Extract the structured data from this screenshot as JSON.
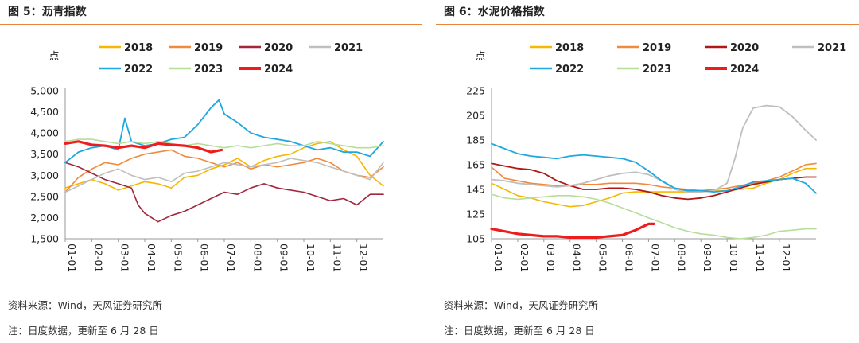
{
  "panels": [
    {
      "title": "图 5：沥青指数",
      "source": "资料来源：Wind，天风证券研究所",
      "note": "注：日度数据，更新至 6 月 28 日"
    },
    {
      "title": "图 6：水泥价格指数",
      "source": "资料来源：Wind，天风证券研究所",
      "note": "注：日度数据，更新至 6 月 28 日"
    }
  ],
  "chart_data": [
    {
      "type": "line",
      "title": "",
      "ylabel": "点",
      "ylim": [
        1500,
        5000
      ],
      "yticks": [
        "1,500",
        "2,000",
        "2,500",
        "3,000",
        "3,500",
        "4,000",
        "4,500",
        "5,000"
      ],
      "ytick_values": [
        1500,
        2000,
        2500,
        3000,
        3500,
        4000,
        4500,
        5000
      ],
      "xticks": [
        "01-01",
        "02-01",
        "03-01",
        "04-01",
        "05-01",
        "06-01",
        "07-01",
        "08-01",
        "09-01",
        "10-01",
        "11-01",
        "12-01"
      ],
      "xlim": [
        0,
        12
      ],
      "legend_position": "top",
      "grid": false,
      "series": [
        {
          "name": "2018",
          "color": "#f5b800",
          "width": 1.6,
          "x": [
            0,
            0.5,
            1,
            1.5,
            2,
            2.5,
            3,
            3.5,
            4,
            4.5,
            5,
            5.5,
            6,
            6.5,
            7,
            7.5,
            8,
            8.5,
            9,
            9.5,
            10,
            10.5,
            11,
            11.5,
            12
          ],
          "values": [
            2700,
            2800,
            2900,
            2800,
            2650,
            2750,
            2850,
            2800,
            2700,
            2950,
            3000,
            3150,
            3250,
            3400,
            3200,
            3350,
            3450,
            3500,
            3650,
            3750,
            3800,
            3600,
            3450,
            3000,
            2750
          ]
        },
        {
          "name": "2019",
          "color": "#f08a3c",
          "width": 1.6,
          "x": [
            0,
            0.5,
            1,
            1.5,
            2,
            2.5,
            3,
            3.5,
            4,
            4.5,
            5,
            5.5,
            6,
            6.5,
            7,
            7.5,
            8,
            8.5,
            9,
            9.5,
            10,
            10.5,
            11,
            11.5,
            12
          ],
          "values": [
            2600,
            2950,
            3150,
            3300,
            3250,
            3400,
            3500,
            3550,
            3600,
            3450,
            3400,
            3300,
            3200,
            3300,
            3150,
            3250,
            3200,
            3250,
            3300,
            3400,
            3300,
            3100,
            3000,
            2950,
            3200
          ]
        },
        {
          "name": "2020",
          "color": "#a3263a",
          "width": 1.6,
          "x": [
            0,
            0.5,
            1,
            1.5,
            2,
            2.5,
            2.75,
            3,
            3.5,
            4,
            4.5,
            5,
            5.5,
            6,
            6.5,
            7,
            7.5,
            8,
            8.5,
            9,
            9.5,
            10,
            10.5,
            11,
            11.5,
            12
          ],
          "values": [
            3300,
            3200,
            3050,
            2900,
            2800,
            2700,
            2300,
            2100,
            1900,
            2050,
            2150,
            2300,
            2450,
            2600,
            2550,
            2700,
            2800,
            2700,
            2650,
            2600,
            2500,
            2400,
            2450,
            2300,
            2550,
            2550
          ]
        },
        {
          "name": "2021",
          "color": "#bfbfbf",
          "width": 1.6,
          "x": [
            0,
            0.5,
            1,
            1.5,
            2,
            2.5,
            3,
            3.5,
            4,
            4.5,
            5,
            5.5,
            6,
            6.5,
            7,
            7.5,
            8,
            8.5,
            9,
            9.5,
            10,
            10.5,
            11,
            11.5,
            12
          ],
          "values": [
            2600,
            2750,
            2900,
            3050,
            3150,
            3000,
            2900,
            2950,
            2850,
            3050,
            3100,
            3200,
            3300,
            3250,
            3200,
            3250,
            3300,
            3400,
            3350,
            3300,
            3200,
            3100,
            3000,
            2900,
            3300
          ]
        },
        {
          "name": "2022",
          "color": "#1fa8e0",
          "width": 1.8,
          "x": [
            0,
            0.5,
            1,
            1.5,
            2,
            2.25,
            2.5,
            3,
            3.5,
            4,
            4.5,
            5,
            5.5,
            5.8,
            6,
            6.5,
            7,
            7.5,
            8,
            8.5,
            9,
            9.5,
            10,
            10.5,
            11,
            11.5,
            12
          ],
          "values": [
            3300,
            3550,
            3650,
            3700,
            3600,
            4350,
            3800,
            3700,
            3750,
            3850,
            3900,
            4200,
            4600,
            4780,
            4450,
            4250,
            4000,
            3900,
            3850,
            3800,
            3700,
            3600,
            3650,
            3550,
            3550,
            3450,
            3800
          ]
        },
        {
          "name": "2023",
          "color": "#b7dd9b",
          "width": 1.6,
          "x": [
            0,
            0.5,
            1,
            1.5,
            2,
            2.5,
            3,
            3.5,
            4,
            4.5,
            5,
            5.5,
            6,
            6.5,
            7,
            7.5,
            8,
            8.5,
            9,
            9.5,
            10,
            10.5,
            11,
            11.5,
            12
          ],
          "values": [
            3800,
            3850,
            3850,
            3800,
            3750,
            3800,
            3750,
            3800,
            3750,
            3700,
            3750,
            3700,
            3650,
            3700,
            3650,
            3700,
            3750,
            3700,
            3700,
            3800,
            3750,
            3700,
            3650,
            3650,
            3700
          ]
        },
        {
          "name": "2024",
          "color": "#ee1c1c",
          "width": 3.2,
          "x": [
            0,
            0.5,
            1,
            1.5,
            2,
            2.5,
            3,
            3.5,
            4,
            4.5,
            5,
            5.5,
            5.9
          ],
          "values": [
            3750,
            3800,
            3720,
            3700,
            3650,
            3700,
            3650,
            3750,
            3720,
            3700,
            3650,
            3550,
            3600
          ]
        }
      ]
    },
    {
      "type": "line",
      "title": "",
      "ylabel": "点",
      "ylim": [
        105,
        225
      ],
      "yticks": [
        "105",
        "125",
        "145",
        "165",
        "185",
        "205",
        "225"
      ],
      "ytick_values": [
        105,
        125,
        145,
        165,
        185,
        205,
        225
      ],
      "xticks": [
        "01-01",
        "02-01",
        "03-01",
        "04-01",
        "05-01",
        "06-01",
        "07-01",
        "08-01",
        "09-01",
        "10-01",
        "11-01",
        "12-01"
      ],
      "xlim": [
        0,
        12.4
      ],
      "legend_position": "top",
      "grid": false,
      "series": [
        {
          "name": "2018",
          "color": "#f5b800",
          "width": 1.6,
          "x": [
            0,
            0.5,
            1,
            1.5,
            2,
            2.5,
            3,
            3.5,
            4,
            4.5,
            5,
            5.5,
            6,
            6.5,
            7,
            7.5,
            8,
            8.5,
            9,
            9.5,
            10,
            10.5,
            11,
            11.5,
            12,
            12.4
          ],
          "values": [
            150,
            145,
            140,
            138,
            135,
            133,
            131,
            132,
            135,
            138,
            142,
            143,
            143,
            143,
            143,
            143,
            144,
            144,
            144,
            145,
            146,
            150,
            153,
            158,
            162,
            162
          ]
        },
        {
          "name": "2019",
          "color": "#f08a3c",
          "width": 1.6,
          "x": [
            0,
            0.5,
            1,
            1.5,
            2,
            2.5,
            3,
            3.5,
            4,
            4.5,
            5,
            5.5,
            6,
            6.5,
            7,
            7.5,
            8,
            8.5,
            9,
            9.5,
            10,
            10.5,
            11,
            11.5,
            12,
            12.4
          ],
          "values": [
            163,
            154,
            152,
            150,
            149,
            148,
            148,
            149,
            149,
            150,
            150,
            150,
            149,
            147,
            146,
            145,
            144,
            145,
            146,
            148,
            150,
            152,
            155,
            160,
            165,
            166
          ]
        },
        {
          "name": "2020",
          "color": "#b01818",
          "width": 1.8,
          "x": [
            0,
            0.5,
            1,
            1.5,
            2,
            2.5,
            3,
            3.5,
            4,
            4.5,
            5,
            5.5,
            6,
            6.5,
            7,
            7.5,
            8,
            8.5,
            9,
            9.5,
            10,
            10.5,
            11,
            11.5,
            12,
            12.4
          ],
          "values": [
            166,
            164,
            162,
            161,
            158,
            152,
            148,
            145,
            145,
            146,
            146,
            145,
            143,
            140,
            138,
            137,
            138,
            140,
            143,
            146,
            149,
            151,
            153,
            154,
            155,
            155
          ]
        },
        {
          "name": "2021",
          "color": "#bfbfbf",
          "width": 1.8,
          "x": [
            0,
            0.5,
            1,
            1.5,
            2,
            2.5,
            3,
            3.5,
            4,
            4.5,
            5,
            5.5,
            6,
            6.5,
            7,
            7.5,
            8,
            8.5,
            9,
            9.3,
            9.6,
            10,
            10.5,
            11,
            11.5,
            12,
            12.4
          ],
          "values": [
            153,
            152,
            150,
            149,
            148,
            147,
            148,
            150,
            153,
            156,
            158,
            159,
            157,
            152,
            145,
            143,
            143,
            144,
            150,
            170,
            195,
            211,
            213,
            212,
            204,
            193,
            185
          ]
        },
        {
          "name": "2022",
          "color": "#1fa8e0",
          "width": 1.8,
          "x": [
            0,
            0.5,
            1,
            1.5,
            2,
            2.5,
            3,
            3.5,
            4,
            4.5,
            5,
            5.5,
            6,
            6.5,
            7,
            7.5,
            8,
            8.5,
            9,
            9.5,
            10,
            10.5,
            11,
            11.5,
            12,
            12.4
          ],
          "values": [
            182,
            178,
            174,
            172,
            171,
            170,
            172,
            173,
            172,
            171,
            170,
            167,
            160,
            152,
            146,
            144,
            144,
            143,
            144,
            147,
            151,
            152,
            153,
            154,
            150,
            142
          ]
        },
        {
          "name": "2023",
          "color": "#b7dd9b",
          "width": 1.6,
          "x": [
            0,
            0.5,
            1,
            1.5,
            2,
            2.5,
            3,
            3.5,
            4,
            4.5,
            5,
            5.5,
            6,
            6.5,
            7,
            7.5,
            8,
            8.5,
            9,
            9.5,
            10,
            10.5,
            11,
            11.5,
            12,
            12.4
          ],
          "values": [
            141,
            138,
            137,
            138,
            139,
            140,
            140,
            139,
            137,
            134,
            130,
            126,
            122,
            118,
            114,
            111,
            109,
            108,
            106,
            105,
            106,
            108,
            111,
            112,
            113,
            113
          ]
        },
        {
          "name": "2024",
          "color": "#ee1c1c",
          "width": 3.2,
          "x": [
            0,
            0.5,
            1,
            1.5,
            2,
            2.5,
            3,
            3.5,
            4,
            4.5,
            5,
            5.5,
            6,
            6.2
          ],
          "values": [
            113,
            111,
            109,
            108,
            107,
            107,
            106,
            106,
            106,
            107,
            108,
            112,
            117,
            117
          ]
        }
      ]
    }
  ]
}
